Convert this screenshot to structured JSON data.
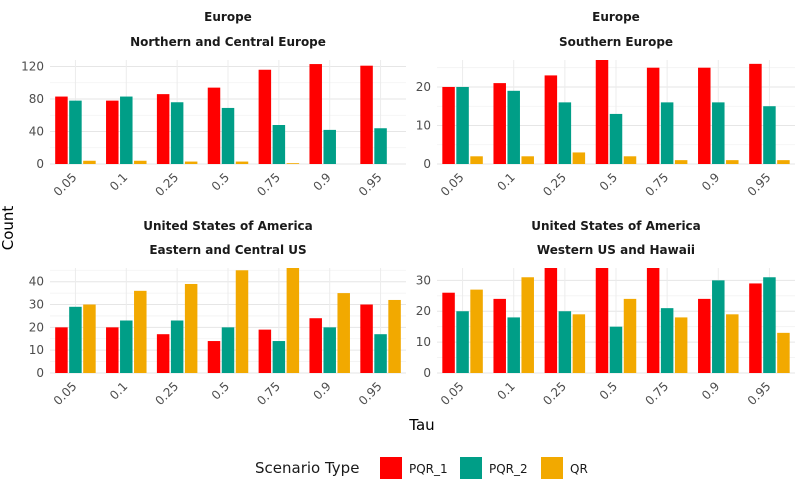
{
  "chart_data": {
    "type": "bar",
    "xlabel": "Tau",
    "ylabel": "Count",
    "categories": [
      "0.05",
      "0.1",
      "0.25",
      "0.5",
      "0.75",
      "0.9",
      "0.95"
    ],
    "legend": {
      "title": "Scenario Type",
      "position": "bottom",
      "entries": [
        "PQR_1",
        "PQR_2",
        "QR"
      ]
    },
    "colors": {
      "PQR_1": "#ff0000",
      "PQR_2": "#009e87",
      "QR": "#f2a900"
    },
    "grid": true,
    "panels": [
      {
        "strip_top": "Europe",
        "strip_bottom": "Northern and Central Europe",
        "ylim": [
          0,
          128
        ],
        "yticks": [
          0,
          40,
          80,
          120
        ],
        "series": [
          {
            "name": "PQR_1",
            "values": [
              83,
              78,
              86,
              94,
              116,
              123,
              121
            ]
          },
          {
            "name": "PQR_2",
            "values": [
              78,
              83,
              76,
              69,
              48,
              42,
              44
            ]
          },
          {
            "name": "QR",
            "values": [
              4,
              4,
              3,
              3,
              1,
              0,
              0
            ]
          }
        ]
      },
      {
        "strip_top": "Europe",
        "strip_bottom": "Southern Europe",
        "ylim": [
          0,
          27
        ],
        "yticks": [
          0,
          10,
          20
        ],
        "series": [
          {
            "name": "PQR_1",
            "values": [
              20,
              21,
              23,
              27,
              25,
              25,
              26
            ]
          },
          {
            "name": "PQR_2",
            "values": [
              20,
              19,
              16,
              13,
              16,
              16,
              15
            ]
          },
          {
            "name": "QR",
            "values": [
              2,
              2,
              3,
              2,
              1,
              1,
              1
            ]
          }
        ]
      },
      {
        "strip_top": "United States of America",
        "strip_bottom": "Eastern and Central US",
        "ylim": [
          0,
          46
        ],
        "yticks": [
          0,
          10,
          20,
          30,
          40
        ],
        "series": [
          {
            "name": "PQR_1",
            "values": [
              20,
              20,
              17,
              14,
              19,
              24,
              30
            ]
          },
          {
            "name": "PQR_2",
            "values": [
              29,
              23,
              23,
              20,
              14,
              20,
              17
            ]
          },
          {
            "name": "QR",
            "values": [
              30,
              36,
              39,
              45,
              46,
              35,
              32
            ]
          }
        ]
      },
      {
        "strip_top": "United States of America",
        "strip_bottom": "Western US and Hawaii",
        "ylim": [
          0,
          34
        ],
        "yticks": [
          0,
          10,
          20,
          30
        ],
        "series": [
          {
            "name": "PQR_1",
            "values": [
              26,
              24,
              34,
              34,
              34,
              24,
              29
            ]
          },
          {
            "name": "PQR_2",
            "values": [
              20,
              18,
              20,
              15,
              21,
              30,
              31
            ]
          },
          {
            "name": "QR",
            "values": [
              27,
              31,
              19,
              24,
              18,
              19,
              13
            ]
          }
        ]
      }
    ]
  }
}
